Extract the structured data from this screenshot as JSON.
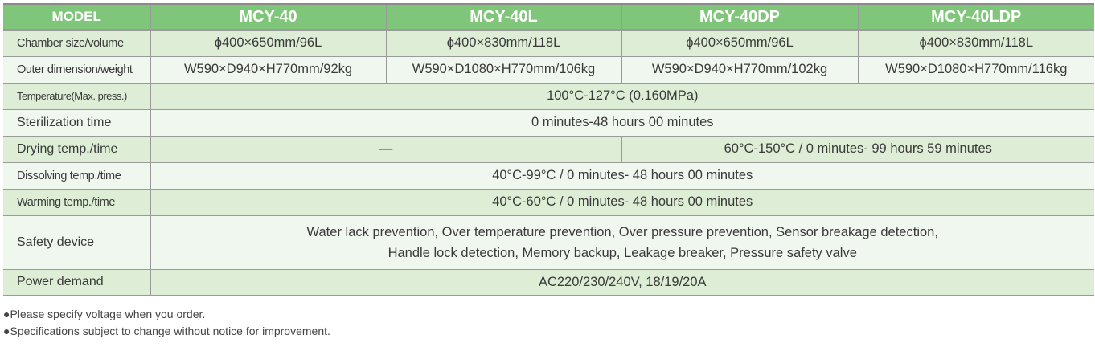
{
  "header": {
    "model_label": "MODEL",
    "models": [
      "MCY-40",
      "MCY-40L",
      "MCY-40DP",
      "MCY-40LDP"
    ]
  },
  "rows": {
    "chamber": {
      "label": "Chamber size/volume",
      "values": [
        "ϕ400×650mm/96L",
        "ϕ400×830mm/118L",
        "ϕ400×650mm/96L",
        "ϕ400×830mm/118L"
      ]
    },
    "outer": {
      "label": "Outer dimension/weight",
      "values": [
        "W590×D940×H770mm/92kg",
        "W590×D1080×H770mm/106kg",
        "W590×D940×H770mm/102kg",
        "W590×D1080×H770mm/116kg"
      ]
    },
    "temperature": {
      "label": "Temperature(Max. press.)",
      "value": "100°C-127°C (0.160MPa)"
    },
    "sterilization": {
      "label": "Sterilization time",
      "value": "0 minutes-48 hours 00 minutes"
    },
    "drying": {
      "label": "Drying temp./time",
      "value_a": "—",
      "value_b": "60°C-150°C / 0 minutes- 99 hours 59 minutes"
    },
    "dissolving": {
      "label": "Dissolving temp./time",
      "value": "40°C-99°C / 0 minutes- 48 hours 00 minutes"
    },
    "warming": {
      "label": "Warming temp./time",
      "value": "40°C-60°C / 0 minutes- 48 hours 00 minutes"
    },
    "safety": {
      "label": "Safety device",
      "line1": "Water lack prevention, Over temperature prevention, Over pressure prevention, Sensor breakage detection,",
      "line2": "Handle lock detection, Memory backup, Leakage breaker, Pressure safety valve"
    },
    "power": {
      "label": "Power demand",
      "value": "AC220/230/240V, 18/19/20A"
    }
  },
  "notes": [
    "●Please specify voltage when you order.",
    "●Specifications subject to change without notice for improvement."
  ],
  "colors": {
    "header_bg": "#80c67a",
    "row_dark": "#deeed6",
    "row_light": "#f0f7ee"
  }
}
